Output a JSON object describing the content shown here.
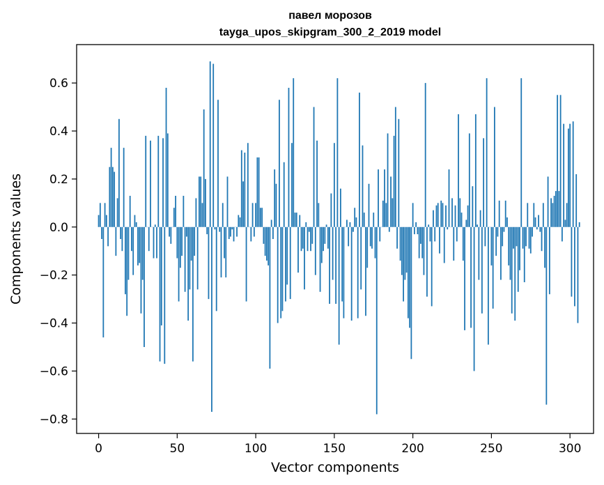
{
  "chart_data": {
    "type": "bar",
    "title": [
      "павел морозов",
      "tayga_upos_skipgram_300_2_2019 model"
    ],
    "xlabel": "Vector components",
    "ylabel": "Components values",
    "xlim": [
      -14,
      315
    ],
    "ylim": [
      -0.86,
      0.76
    ],
    "xticks": [
      0,
      50,
      100,
      150,
      200,
      250,
      300
    ],
    "xtick_labels": [
      "0",
      "50",
      "100",
      "150",
      "200",
      "250",
      "300"
    ],
    "yticks": [
      -0.8,
      -0.6,
      -0.4,
      -0.2,
      0.0,
      0.2,
      0.4,
      0.6
    ],
    "ytick_labels": [
      "−0.8",
      "−0.6",
      "−0.4",
      "−0.2",
      "0.0",
      "0.2",
      "0.4",
      "0.6"
    ],
    "bar_color": "#1f77b4",
    "grid": false,
    "values": [
      0.05,
      0.1,
      -0.05,
      -0.46,
      0.1,
      0.05,
      -0.08,
      0.25,
      0.33,
      0.25,
      0.23,
      -0.12,
      0.12,
      0.45,
      -0.05,
      -0.1,
      0.33,
      -0.28,
      -0.37,
      -0.22,
      0.13,
      -0.1,
      -0.2,
      0.05,
      0.02,
      -0.16,
      -0.15,
      -0.36,
      -0.22,
      -0.5,
      0.38,
      0.0,
      -0.1,
      0.36,
      0.0,
      -0.13,
      0.01,
      -0.13,
      0.38,
      -0.56,
      -0.41,
      0.37,
      -0.57,
      0.58,
      0.39,
      -0.04,
      -0.07,
      0.0,
      0.08,
      0.13,
      -0.13,
      -0.31,
      -0.17,
      -0.12,
      0.13,
      -0.27,
      -0.04,
      -0.39,
      -0.26,
      -0.14,
      -0.56,
      -0.12,
      0.12,
      -0.26,
      0.21,
      0.21,
      0.1,
      0.49,
      0.2,
      -0.03,
      -0.3,
      0.69,
      -0.77,
      0.68,
      -0.01,
      -0.35,
      0.53,
      -0.02,
      -0.21,
      0.1,
      -0.13,
      -0.21,
      0.21,
      -0.05,
      -0.04,
      -0.01,
      -0.06,
      0.0,
      -0.04,
      0.05,
      0.04,
      0.32,
      0.19,
      0.31,
      -0.31,
      0.35,
      0.0,
      -0.06,
      0.1,
      -0.04,
      0.1,
      0.29,
      0.29,
      0.08,
      0.08,
      -0.07,
      -0.12,
      -0.14,
      -0.16,
      -0.59,
      0.03,
      -0.05,
      0.24,
      0.18,
      -0.4,
      0.53,
      -0.38,
      -0.35,
      0.27,
      -0.31,
      -0.24,
      0.58,
      -0.3,
      0.35,
      0.62,
      0.06,
      0.06,
      -0.19,
      0.05,
      -0.1,
      -0.09,
      -0.26,
      0.02,
      -0.1,
      -0.02,
      -0.1,
      -0.07,
      0.5,
      -0.2,
      0.36,
      0.1,
      -0.27,
      -0.15,
      -0.1,
      -0.07,
      0.01,
      -0.09,
      -0.32,
      0.14,
      -0.22,
      0.35,
      -0.32,
      0.62,
      -0.49,
      0.16,
      -0.31,
      -0.38,
      0.0,
      0.03,
      -0.08,
      0.02,
      -0.39,
      -0.02,
      0.08,
      0.04,
      -0.38,
      0.56,
      -0.26,
      0.34,
      0.06,
      -0.37,
      -0.17,
      0.18,
      -0.08,
      -0.09,
      0.06,
      -0.13,
      -0.78,
      0.24,
      -0.06,
      0.0,
      0.11,
      0.24,
      0.1,
      0.39,
      -0.02,
      0.21,
      0.12,
      0.38,
      0.5,
      -0.09,
      0.45,
      -0.14,
      -0.2,
      -0.31,
      -0.22,
      -0.19,
      -0.38,
      -0.42,
      -0.55,
      0.1,
      -0.03,
      0.02,
      -0.03,
      -0.13,
      -0.07,
      -0.13,
      -0.2,
      0.6,
      -0.29,
      0.01,
      -0.06,
      -0.33,
      0.07,
      -0.06,
      0.09,
      0.1,
      -0.11,
      0.11,
      0.1,
      -0.15,
      0.09,
      -0.01,
      0.24,
      0.0,
      0.12,
      -0.14,
      0.09,
      -0.06,
      0.47,
      0.12,
      0.06,
      -0.14,
      -0.43,
      0.03,
      0.09,
      0.39,
      -0.42,
      0.17,
      -0.6,
      0.47,
      0.01,
      -0.22,
      0.07,
      -0.36,
      0.37,
      -0.08,
      0.62,
      -0.49,
      0.0,
      -0.16,
      -0.34,
      0.5,
      -0.12,
      -0.04,
      0.11,
      -0.22,
      -0.08,
      -0.02,
      0.11,
      0.04,
      -0.16,
      -0.22,
      -0.36,
      -0.09,
      -0.39,
      -0.08,
      -0.27,
      -0.18,
      0.62,
      -0.09,
      -0.23,
      -0.08,
      0.1,
      -0.09,
      -0.11,
      -0.04,
      0.1,
      0.04,
      -0.01,
      0.05,
      -0.02,
      -0.1,
      0.1,
      -0.17,
      -0.74,
      0.21,
      -0.28,
      0.12,
      0.1,
      0.13,
      0.15,
      0.55,
      0.15,
      0.55,
      -0.06,
      0.43,
      0.03,
      0.1,
      0.41,
      0.43,
      -0.29,
      0.44,
      -0.33,
      0.22,
      -0.4,
      0.02
    ]
  }
}
